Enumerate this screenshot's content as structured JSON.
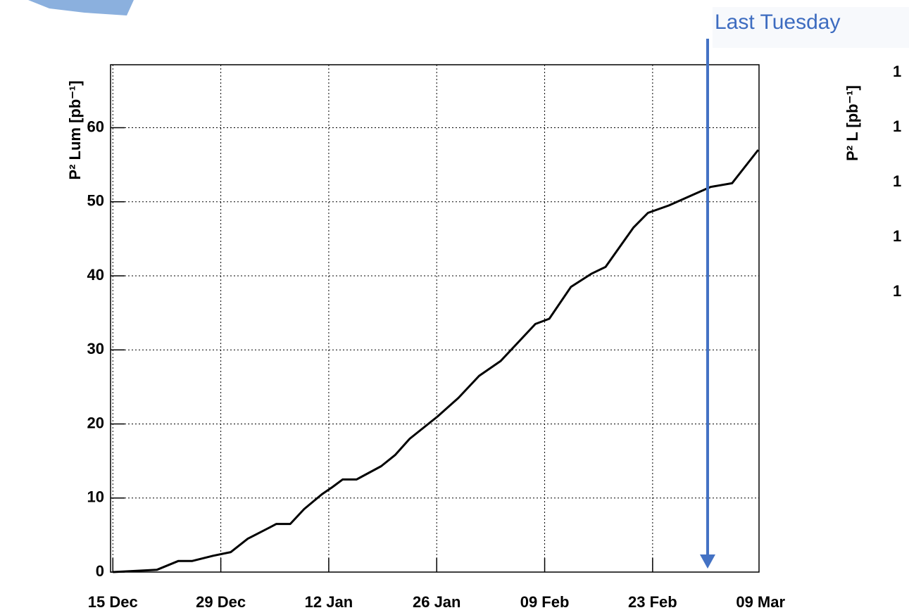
{
  "chart_data": {
    "type": "line",
    "ylabel": "P² Lum [pb⁻¹]",
    "annotation": "Last Tuesday",
    "x": [
      0,
      5.7,
      8.5,
      10.3,
      13,
      15.3,
      17.5,
      20.3,
      21.2,
      23,
      24.8,
      27.1,
      28.5,
      29.8,
      31.6,
      34.8,
      36.6,
      38.5,
      42.1,
      44.8,
      47.5,
      50.3,
      54.8,
      56.6,
      59.4,
      62.1,
      63.9,
      67.5,
      69.4,
      72.1,
      77.5,
      80.3,
      83.7
    ],
    "series": [
      {
        "color": "#000000",
        "values": [
          0,
          0.3,
          1.5,
          1.5,
          2.2,
          2.7,
          4.5,
          6.0,
          6.5,
          6.5,
          8.5,
          10.5,
          11.5,
          12.5,
          12.5,
          14.3,
          15.8,
          18,
          21,
          23.5,
          26.5,
          28.5,
          33.5,
          34.2,
          38.5,
          40.3,
          41.2,
          46.5,
          48.5,
          49.5,
          52,
          52.5,
          57
        ]
      }
    ],
    "xlim": [
      -0.3,
      83.8
    ],
    "xticks": [
      {
        "value": 0,
        "label": "15 Dec"
      },
      {
        "value": 14,
        "label": "29 Dec"
      },
      {
        "value": 28,
        "label": "12 Jan"
      },
      {
        "value": 42,
        "label": "26 Jan"
      },
      {
        "value": 56,
        "label": "09 Feb"
      },
      {
        "value": 70,
        "label": "23 Feb"
      },
      {
        "value": 84,
        "label": "09 Mar"
      }
    ],
    "ylim": [
      0,
      68.5
    ],
    "yticks": [
      0,
      10,
      20,
      30,
      40,
      50,
      60
    ],
    "grid": true
  },
  "side_fragment": {
    "ylabel": "P² L [pb⁻¹]",
    "ticks": [
      "1",
      "1",
      "1",
      "1",
      "1"
    ]
  }
}
